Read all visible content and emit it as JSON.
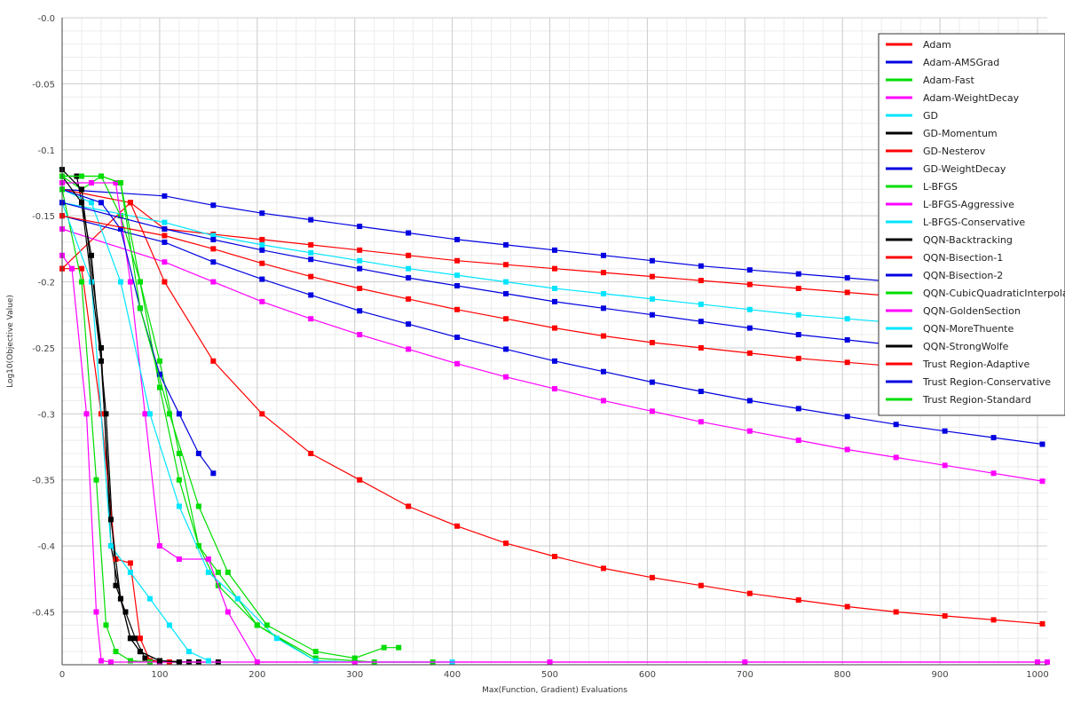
{
  "chart_data": {
    "type": "line",
    "title": "",
    "xlabel": "Max(Function, Gradient) Evaluations",
    "ylabel": "Log10(Objective Value)",
    "xlim": [
      0,
      1010
    ],
    "ylim": [
      -0.49,
      0.0
    ],
    "xticks": [
      0,
      100,
      200,
      300,
      400,
      500,
      600,
      700,
      800,
      900,
      1000
    ],
    "xtick_labels": [
      "0",
      "100",
      "200",
      "300",
      "400",
      "500",
      "600",
      "700",
      "800",
      "900",
      "1000"
    ],
    "yticks": [
      -0.0,
      -0.05,
      -0.1,
      -0.15,
      -0.2,
      -0.25,
      -0.3,
      -0.35,
      -0.4,
      -0.45
    ],
    "ytick_labels": [
      "-0.0",
      "-0.05",
      "-0.1",
      "-0.15",
      "-0.2",
      "-0.25",
      "-0.3",
      "-0.35",
      "-0.4",
      "-0.45"
    ],
    "grid": true,
    "minor_grid": true,
    "legend_position": "top-right",
    "series": [
      {
        "name": "Adam",
        "color": "#ff0000",
        "x": [
          0,
          70,
          105,
          155,
          205,
          255,
          305,
          355,
          405,
          455,
          505,
          555,
          605,
          655,
          705,
          755,
          805,
          855,
          905,
          955,
          1005
        ],
        "y": [
          -0.19,
          -0.14,
          -0.16,
          -0.164,
          -0.168,
          -0.172,
          -0.176,
          -0.18,
          -0.184,
          -0.187,
          -0.19,
          -0.193,
          -0.196,
          -0.199,
          -0.202,
          -0.205,
          -0.208,
          -0.211,
          -0.214,
          -0.217,
          -0.22
        ]
      },
      {
        "name": "Adam-AMSGrad",
        "color": "#0000e0",
        "x": [
          0,
          105,
          155,
          205,
          255,
          305,
          355,
          405,
          455,
          505,
          555,
          605,
          655,
          705,
          755,
          805,
          855,
          905,
          955,
          1005
        ],
        "y": [
          -0.13,
          -0.135,
          -0.142,
          -0.148,
          -0.153,
          -0.158,
          -0.163,
          -0.168,
          -0.172,
          -0.176,
          -0.18,
          -0.184,
          -0.188,
          -0.191,
          -0.194,
          -0.197,
          -0.2,
          -0.203,
          -0.206,
          -0.209
        ]
      },
      {
        "name": "Adam-Fast",
        "color": "#00dd00",
        "x": [
          0,
          20,
          40,
          60,
          80,
          100,
          120,
          140,
          160,
          200,
          260,
          320,
          380
        ],
        "y": [
          -0.12,
          -0.13,
          -0.12,
          -0.15,
          -0.2,
          -0.26,
          -0.33,
          -0.4,
          -0.43,
          -0.46,
          -0.485,
          -0.488,
          -0.488
        ]
      },
      {
        "name": "Adam-WeightDecay",
        "color": "#ff00ff",
        "x": [
          0,
          105,
          155,
          205,
          255,
          305,
          355,
          405,
          455,
          505,
          555,
          605,
          655,
          705,
          755,
          805,
          855,
          905,
          955,
          1005
        ],
        "y": [
          -0.16,
          -0.185,
          -0.2,
          -0.215,
          -0.228,
          -0.24,
          -0.251,
          -0.262,
          -0.272,
          -0.281,
          -0.29,
          -0.298,
          -0.306,
          -0.313,
          -0.32,
          -0.327,
          -0.333,
          -0.339,
          -0.345,
          -0.351
        ]
      },
      {
        "name": "GD",
        "color": "#00e5ff",
        "x": [
          0,
          105,
          155,
          205,
          255,
          305,
          355,
          405,
          455,
          505,
          555,
          605,
          655,
          705,
          755,
          805,
          855,
          905,
          955,
          1005
        ],
        "y": [
          -0.14,
          -0.155,
          -0.165,
          -0.172,
          -0.178,
          -0.184,
          -0.19,
          -0.195,
          -0.2,
          -0.205,
          -0.209,
          -0.213,
          -0.217,
          -0.221,
          -0.225,
          -0.228,
          -0.231,
          -0.234,
          -0.237,
          -0.24
        ]
      },
      {
        "name": "GD-Momentum",
        "color": "#000000",
        "x": [
          0,
          15,
          30,
          45,
          55,
          65,
          75,
          85,
          100,
          120,
          140
        ],
        "y": [
          -0.12,
          -0.12,
          -0.18,
          -0.3,
          -0.43,
          -0.45,
          -0.47,
          -0.485,
          -0.488,
          -0.488,
          -0.488
        ]
      },
      {
        "name": "GD-Nesterov",
        "color": "#ff0000",
        "x": [
          0,
          70,
          105,
          155,
          205,
          255,
          305,
          355,
          405,
          455,
          505,
          555,
          605,
          655,
          705,
          755,
          805,
          855,
          905,
          955,
          1005
        ],
        "y": [
          -0.13,
          -0.14,
          -0.2,
          -0.26,
          -0.3,
          -0.33,
          -0.35,
          -0.37,
          -0.385,
          -0.398,
          -0.408,
          -0.417,
          -0.424,
          -0.43,
          -0.436,
          -0.441,
          -0.446,
          -0.45,
          -0.453,
          -0.456,
          -0.459
        ]
      },
      {
        "name": "GD-WeightDecay",
        "color": "#0000e0",
        "x": [
          0,
          105,
          155,
          205,
          255,
          305,
          355,
          405,
          455,
          505,
          555,
          605,
          655,
          705,
          755,
          805,
          855,
          905,
          955,
          1005
        ],
        "y": [
          -0.15,
          -0.17,
          -0.185,
          -0.198,
          -0.21,
          -0.222,
          -0.232,
          -0.242,
          -0.251,
          -0.26,
          -0.268,
          -0.276,
          -0.283,
          -0.29,
          -0.296,
          -0.302,
          -0.308,
          -0.313,
          -0.318,
          -0.323
        ]
      },
      {
        "name": "L-BFGS",
        "color": "#00dd00",
        "x": [
          0,
          40,
          60,
          80,
          100,
          120,
          140,
          160,
          200,
          260
        ],
        "y": [
          -0.12,
          -0.12,
          -0.125,
          -0.2,
          -0.28,
          -0.35,
          -0.4,
          -0.42,
          -0.46,
          -0.487
        ]
      },
      {
        "name": "L-BFGS-Aggressive",
        "color": "#ff00ff",
        "x": [
          0,
          30,
          55,
          70,
          85,
          100,
          120,
          150,
          170,
          200,
          1010
        ],
        "y": [
          -0.125,
          -0.125,
          -0.125,
          -0.2,
          -0.3,
          -0.4,
          -0.41,
          -0.41,
          -0.45,
          -0.488,
          -0.488
        ]
      },
      {
        "name": "L-BFGS-Conservative",
        "color": "#00e5ff",
        "x": [
          0,
          30,
          60,
          90,
          120,
          150,
          180,
          220,
          260,
          300,
          400
        ],
        "y": [
          -0.13,
          -0.14,
          -0.2,
          -0.3,
          -0.37,
          -0.42,
          -0.44,
          -0.47,
          -0.487,
          -0.488,
          -0.488
        ]
      },
      {
        "name": "QQN-Backtracking",
        "color": "#000000",
        "x": [
          0,
          20,
          40,
          50,
          60,
          70,
          80,
          100,
          130,
          160
        ],
        "y": [
          -0.115,
          -0.13,
          -0.25,
          -0.4,
          -0.44,
          -0.47,
          -0.48,
          -0.487,
          -0.488,
          -0.488
        ]
      },
      {
        "name": "QQN-Bisection-1",
        "color": "#ff0000",
        "x": [
          0,
          20,
          40,
          55,
          70,
          80,
          90,
          110
        ],
        "y": [
          -0.19,
          -0.19,
          -0.3,
          -0.41,
          -0.413,
          -0.47,
          -0.487,
          -0.488
        ]
      },
      {
        "name": "QQN-Bisection-2",
        "color": "#0000e0",
        "x": [
          0,
          40,
          60,
          80,
          100,
          120,
          140,
          155
        ],
        "y": [
          -0.13,
          -0.14,
          -0.16,
          -0.22,
          -0.27,
          -0.3,
          -0.33,
          -0.345
        ]
      },
      {
        "name": "QQN-CubicQuadraticInterpolation",
        "color": "#00dd00",
        "x": [
          0,
          20,
          35,
          45,
          55,
          70,
          90
        ],
        "y": [
          -0.13,
          -0.2,
          -0.35,
          -0.46,
          -0.48,
          -0.487,
          -0.488
        ]
      },
      {
        "name": "QQN-GoldenSection",
        "color": "#ff00ff",
        "x": [
          0,
          10,
          25,
          35,
          40,
          50,
          100,
          300,
          500,
          700,
          1000,
          1010
        ],
        "y": [
          -0.18,
          -0.19,
          -0.3,
          -0.45,
          -0.487,
          -0.488,
          -0.488,
          -0.488,
          -0.488,
          -0.488,
          -0.488,
          -0.488
        ]
      },
      {
        "name": "QQN-MoreThuente",
        "color": "#00e5ff",
        "x": [
          0,
          30,
          50,
          70,
          90,
          110,
          130,
          150
        ],
        "y": [
          -0.14,
          -0.2,
          -0.4,
          -0.42,
          -0.44,
          -0.46,
          -0.48,
          -0.487
        ]
      },
      {
        "name": "QQN-StrongWolfe",
        "color": "#000000",
        "x": [
          0,
          20,
          40,
          50,
          60,
          70,
          80,
          100,
          120
        ],
        "y": [
          -0.12,
          -0.14,
          -0.26,
          -0.38,
          -0.44,
          -0.47,
          -0.48,
          -0.487,
          -0.488
        ]
      },
      {
        "name": "Trust Region-Adaptive",
        "color": "#ff0000",
        "x": [
          0,
          105,
          155,
          205,
          255,
          305,
          355,
          405,
          455,
          505,
          555,
          605,
          655,
          705,
          755,
          805,
          855,
          905,
          955,
          1005
        ],
        "y": [
          -0.15,
          -0.165,
          -0.175,
          -0.186,
          -0.196,
          -0.205,
          -0.213,
          -0.221,
          -0.228,
          -0.235,
          -0.241,
          -0.246,
          -0.25,
          -0.254,
          -0.258,
          -0.261,
          -0.264,
          -0.267,
          -0.27,
          -0.273
        ]
      },
      {
        "name": "Trust Region-Conservative",
        "color": "#0000e0",
        "x": [
          0,
          105,
          155,
          205,
          255,
          305,
          355,
          405,
          455,
          505,
          555,
          605,
          655,
          705,
          755,
          805,
          855,
          905,
          955,
          1005
        ],
        "y": [
          -0.14,
          -0.16,
          -0.168,
          -0.176,
          -0.183,
          -0.19,
          -0.197,
          -0.203,
          -0.209,
          -0.215,
          -0.22,
          -0.225,
          -0.23,
          -0.235,
          -0.24,
          -0.244,
          -0.248,
          -0.252,
          -0.256,
          -0.26
        ]
      },
      {
        "name": "Trust Region-Standard",
        "color": "#00dd00",
        "x": [
          0,
          20,
          40,
          60,
          80,
          110,
          140,
          170,
          210,
          260,
          300,
          330,
          345
        ],
        "y": [
          -0.12,
          -0.12,
          -0.12,
          -0.125,
          -0.22,
          -0.3,
          -0.37,
          -0.42,
          -0.46,
          -0.48,
          -0.485,
          -0.477,
          -0.477
        ]
      }
    ]
  }
}
